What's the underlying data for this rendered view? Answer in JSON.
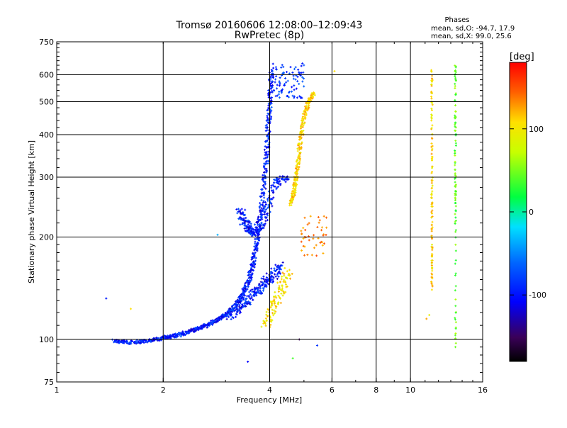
{
  "chart_data": {
    "type": "scatter",
    "title": "Tromsø 20160606 12:08:00–12:09:43",
    "subtitle": "RwPretec (8p)",
    "xlabel": "Frequency [MHz]",
    "ylabel": "Stationary phase Virtual Height [km]",
    "x_scale": "log",
    "y_scale": "log",
    "xlim": [
      1,
      16
    ],
    "ylim": [
      75,
      750
    ],
    "x_ticks": [
      1,
      2,
      4,
      6,
      8,
      10,
      16
    ],
    "y_ticks": [
      75,
      100,
      200,
      300,
      400,
      500,
      600,
      750
    ],
    "grid": true,
    "phase_box": {
      "title": "Phases",
      "line1": "mean, sd,O: -94.7, 17.9",
      "line2": "mean, sd,X:  99.0, 25.6"
    },
    "colorbar": {
      "label": "[deg]",
      "ticks": [
        100,
        0,
        -100
      ],
      "range": [
        -180,
        180
      ]
    },
    "traces": [
      {
        "name": "",
        "phase": -100,
        "spread_x": 0.015,
        "spread_y": 0.012,
        "n": 4,
        "x": [
          1.45,
          1.6,
          1.8,
          2.0,
          2.2,
          2.4,
          2.6,
          2.8,
          3.0,
          3.2,
          3.35,
          3.5,
          3.6,
          3.7,
          3.8,
          3.9,
          3.95,
          4.0,
          4.05
        ],
        "y": [
          99,
          98,
          99,
          101,
          103,
          106,
          109,
          113,
          118,
          125,
          135,
          150,
          170,
          200,
          250,
          320,
          400,
          500,
          620
        ]
      },
      {
        "name": "",
        "phase": -100,
        "spread_x": 0.03,
        "spread_y": 0.02,
        "n": 3,
        "x": [
          3.3,
          3.4,
          3.5,
          3.6,
          3.75,
          3.95,
          4.2,
          4.45
        ],
        "y": [
          240,
          220,
          210,
          205,
          215,
          245,
          290,
          300
        ]
      },
      {
        "name": "",
        "phase": -100,
        "spread_x": 0.03,
        "spread_y": 0.03,
        "n": 3,
        "x": [
          3.1,
          3.3,
          3.5,
          3.7,
          3.9,
          4.1,
          4.3
        ],
        "y": [
          118,
          125,
          132,
          140,
          148,
          155,
          165
        ]
      },
      {
        "name": "",
        "phase": -90,
        "spread_x": 0.06,
        "spread_y": 0.08,
        "n": 90,
        "x": [
          4.05,
          5.0
        ],
        "y": [
          510,
          650
        ]
      },
      {
        "name": "",
        "phase": 100,
        "spread_x": 0.012,
        "spread_y": 0.015,
        "n": 3,
        "x": [
          4.6,
          4.68,
          4.75,
          4.82,
          4.9,
          5.0,
          5.15,
          5.35
        ],
        "y": [
          250,
          270,
          300,
          340,
          390,
          450,
          500,
          530
        ]
      },
      {
        "name": "",
        "phase": 130,
        "spread_x": 0.05,
        "spread_y": 0.05,
        "n": 45,
        "x": [
          4.9,
          5.8
        ],
        "y": [
          175,
          235
        ]
      },
      {
        "name": "",
        "phase": 95,
        "spread_x": 0.03,
        "spread_y": 0.03,
        "n": 3,
        "x": [
          3.9,
          4.1,
          4.3,
          4.55
        ],
        "y": [
          110,
          125,
          140,
          160
        ]
      },
      {
        "name": "",
        "phase": 100,
        "spread_x": 0.004,
        "spread_y": 0.02,
        "n": 1,
        "x": [
          11.5,
          11.5,
          11.5,
          11.5,
          11.5,
          11.5,
          11.5,
          11.5,
          11.5,
          11.5,
          11.5
        ],
        "y": [
          620,
          550,
          480,
          390,
          330,
          280,
          250,
          210,
          180,
          160,
          140
        ]
      },
      {
        "name": "",
        "phase": 30,
        "spread_x": 0.004,
        "spread_y": 0.02,
        "n": 1,
        "x": [
          13.4,
          13.4,
          13.4,
          13.4,
          13.4,
          13.4,
          13.4,
          13.4,
          13.4,
          13.4
        ],
        "y": [
          640,
          575,
          460,
          415,
          330,
          280,
          260,
          210,
          120,
          95
        ]
      }
    ],
    "scatter_points": [
      {
        "x": 1.38,
        "y": 132,
        "phase": -100
      },
      {
        "x": 1.62,
        "y": 123,
        "phase": 100
      },
      {
        "x": 3.47,
        "y": 86,
        "phase": -110
      },
      {
        "x": 4.65,
        "y": 88,
        "phase": 20
      },
      {
        "x": 4.85,
        "y": 100,
        "phase": -150
      },
      {
        "x": 5.45,
        "y": 96,
        "phase": -90
      },
      {
        "x": 11.1,
        "y": 115,
        "phase": 120
      },
      {
        "x": 11.3,
        "y": 118,
        "phase": 80
      },
      {
        "x": 6.1,
        "y": 615,
        "phase": 100
      },
      {
        "x": 2.85,
        "y": 203,
        "phase": -40
      }
    ]
  }
}
